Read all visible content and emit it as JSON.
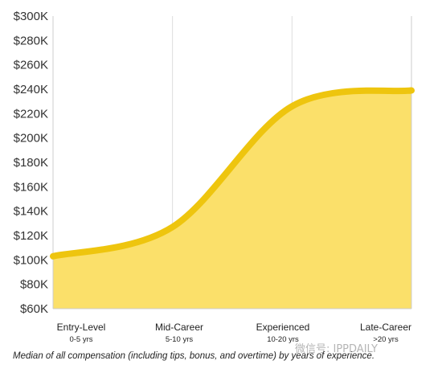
{
  "chart_data": {
    "type": "area",
    "categories": [
      {
        "label": "Entry-Level",
        "sublabel": "0-5 yrs"
      },
      {
        "label": "Mid-Career",
        "sublabel": "5-10 yrs"
      },
      {
        "label": "Experienced",
        "sublabel": "10-20 yrs"
      },
      {
        "label": "Late-Career",
        "sublabel": ">20 yrs"
      }
    ],
    "values": [
      103000,
      127000,
      226000,
      239000
    ],
    "ylim": [
      60000,
      300000
    ],
    "ytick_step": 20000,
    "ytick_labels": [
      "$60K",
      "$80K",
      "$100K",
      "$120K",
      "$140K",
      "$160K",
      "$180K",
      "$200K",
      "$220K",
      "$240K",
      "$260K",
      "$280K",
      "$300K"
    ],
    "grid": "vertical",
    "caption": "Median of all compensation (including tips, bonus, and overtime) by years of experience.",
    "watermark": "微信号: IPPDAILY",
    "colors": {
      "fill": "#fbe06a",
      "line": "#eec50e",
      "grid": "#dddddd",
      "frame": "#cccccc"
    }
  }
}
